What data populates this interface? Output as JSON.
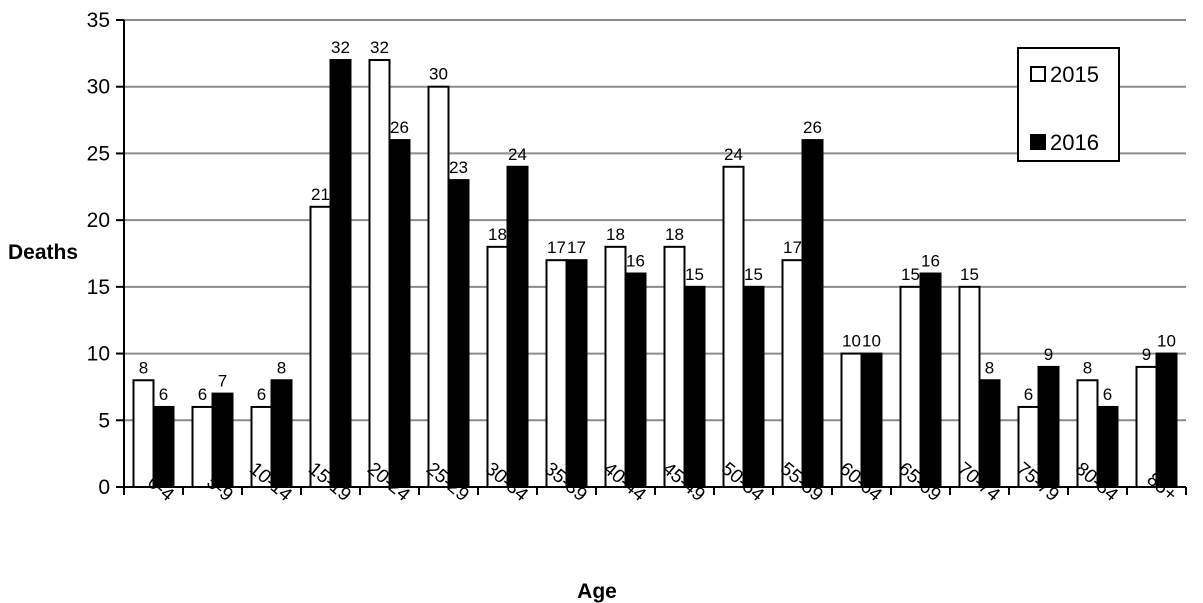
{
  "chart_data": {
    "type": "bar",
    "title": "",
    "xlabel": "Age",
    "ylabel": "Deaths",
    "ylim": [
      0,
      35
    ],
    "ytick_step": 5,
    "grid": true,
    "legend_position": "top-right",
    "categories": [
      "0-4",
      "5-9",
      "10-14",
      "15-19",
      "20-24",
      "25-29",
      "30-34",
      "35-39",
      "40-44",
      "45-49",
      "50-54",
      "55-59",
      "60-64",
      "65-69",
      "70-74",
      "75-79",
      "80-84",
      "85+"
    ],
    "series": [
      {
        "name": "2015",
        "color": "#ffffff",
        "values": [
          8,
          6,
          6,
          21,
          32,
          30,
          18,
          17,
          18,
          18,
          24,
          17,
          10,
          15,
          15,
          6,
          8,
          9
        ]
      },
      {
        "name": "2016",
        "color": "#000000",
        "values": [
          6,
          7,
          8,
          32,
          26,
          23,
          24,
          17,
          16,
          15,
          15,
          26,
          10,
          16,
          8,
          9,
          6,
          10
        ]
      }
    ]
  }
}
